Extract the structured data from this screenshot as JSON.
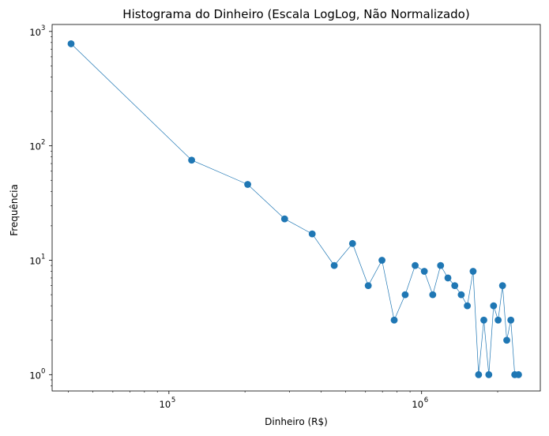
{
  "chart_data": {
    "type": "line",
    "title": "Histograma do Dinheiro (Escala LogLog, Não Normalizado)",
    "xlabel": "Dinheiro (R$)",
    "ylabel": "Frequência",
    "xscale": "log",
    "yscale": "log",
    "xlim": [
      34500,
      2950000
    ],
    "ylim": [
      0.72,
      1150
    ],
    "x_ticks": [
      {
        "base": "10",
        "exp": "5",
        "value": 100000
      },
      {
        "base": "10",
        "exp": "6",
        "value": 1000000
      }
    ],
    "y_ticks": [
      {
        "base": "10",
        "exp": "0",
        "value": 1
      },
      {
        "base": "10",
        "exp": "1",
        "value": 10
      },
      {
        "base": "10",
        "exp": "2",
        "value": 100
      },
      {
        "base": "10",
        "exp": "3",
        "value": 1000
      }
    ],
    "grid": false,
    "color": "#1f77b4",
    "series": [
      {
        "name": "Frequência",
        "points": [
          [
            41000,
            780
          ],
          [
            123000,
            75
          ],
          [
            205000,
            46
          ],
          [
            287000,
            23
          ],
          [
            369000,
            17
          ],
          [
            451000,
            9
          ],
          [
            533000,
            14
          ],
          [
            615000,
            6
          ],
          [
            697000,
            10
          ],
          [
            779000,
            3
          ],
          [
            861000,
            5
          ],
          [
            943000,
            9
          ],
          [
            1025000,
            8
          ],
          [
            1107000,
            5
          ],
          [
            1189000,
            9
          ],
          [
            1271000,
            7
          ],
          [
            1353000,
            6
          ],
          [
            1435000,
            5
          ],
          [
            1517000,
            4
          ],
          [
            1599000,
            8
          ],
          [
            1681000,
            1
          ],
          [
            1763000,
            3
          ],
          [
            1845000,
            1
          ],
          [
            1927000,
            4
          ],
          [
            2009000,
            3
          ],
          [
            2091000,
            6
          ],
          [
            2173000,
            2
          ],
          [
            2255000,
            3
          ],
          [
            2337000,
            1
          ],
          [
            2419000,
            1
          ]
        ]
      }
    ]
  }
}
